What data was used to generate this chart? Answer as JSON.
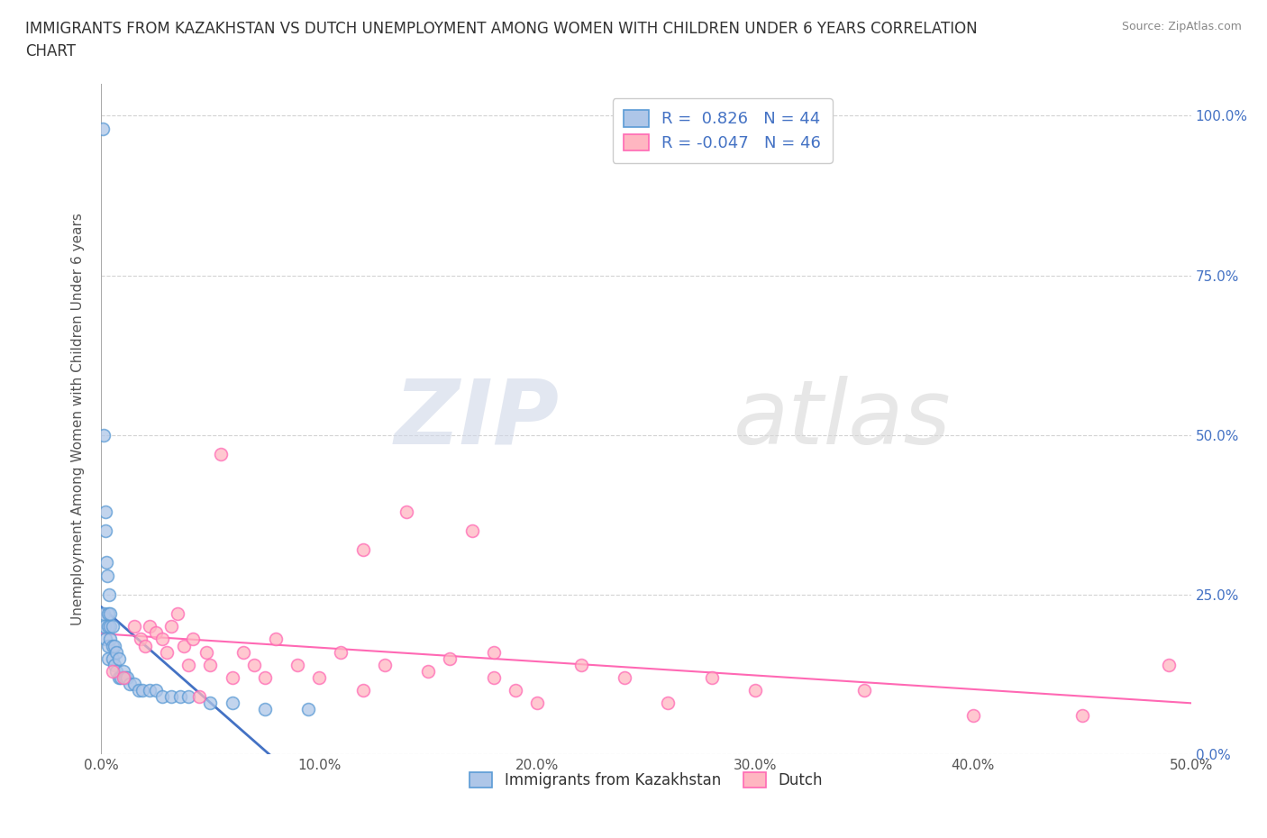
{
  "title_line1": "IMMIGRANTS FROM KAZAKHSTAN VS DUTCH UNEMPLOYMENT AMONG WOMEN WITH CHILDREN UNDER 6 YEARS CORRELATION",
  "title_line2": "CHART",
  "source": "Source: ZipAtlas.com",
  "ylabel": "Unemployment Among Women with Children Under 6 years",
  "xlim": [
    0.0,
    0.5
  ],
  "ylim": [
    0.0,
    1.05
  ],
  "xticks": [
    0.0,
    0.1,
    0.2,
    0.3,
    0.4,
    0.5
  ],
  "xticklabels": [
    "0.0%",
    "10.0%",
    "20.0%",
    "30.0%",
    "40.0%",
    "50.0%"
  ],
  "yticks": [
    0.0,
    0.25,
    0.5,
    0.75,
    1.0
  ],
  "yticklabels_right": [
    "0.0%",
    "25.0%",
    "50.0%",
    "75.0%",
    "100.0%"
  ],
  "legend_r1": "R =  0.826   N = 44",
  "legend_r2": "R = -0.047   N = 46",
  "legend_label1": "Immigrants from Kazakhstan",
  "legend_label2": "Dutch",
  "blue_face": "#AEC6E8",
  "blue_edge": "#5B9BD5",
  "blue_line": "#4472C4",
  "pink_face": "#FFB6C1",
  "pink_edge": "#FF69B4",
  "pink_line": "#FF69B4",
  "right_tick_color": "#4472C4",
  "grid_color": "#d3d3d3",
  "background_color": "#ffffff",
  "watermark": "ZIPatlas",
  "kaz_x": [
    0.0008,
    0.001,
    0.0012,
    0.0015,
    0.0018,
    0.002,
    0.002,
    0.0022,
    0.0025,
    0.003,
    0.003,
    0.003,
    0.003,
    0.0035,
    0.004,
    0.004,
    0.004,
    0.005,
    0.005,
    0.005,
    0.006,
    0.006,
    0.007,
    0.007,
    0.008,
    0.008,
    0.009,
    0.01,
    0.011,
    0.012,
    0.013,
    0.015,
    0.017,
    0.019,
    0.022,
    0.025,
    0.028,
    0.032,
    0.036,
    0.04,
    0.05,
    0.06,
    0.075,
    0.095
  ],
  "kaz_y": [
    0.98,
    0.5,
    0.22,
    0.2,
    0.18,
    0.35,
    0.38,
    0.3,
    0.28,
    0.15,
    0.17,
    0.2,
    0.22,
    0.25,
    0.18,
    0.2,
    0.22,
    0.15,
    0.17,
    0.2,
    0.14,
    0.17,
    0.13,
    0.16,
    0.12,
    0.15,
    0.12,
    0.13,
    0.12,
    0.12,
    0.11,
    0.11,
    0.1,
    0.1,
    0.1,
    0.1,
    0.09,
    0.09,
    0.09,
    0.09,
    0.08,
    0.08,
    0.07,
    0.07
  ],
  "dutch_x": [
    0.005,
    0.01,
    0.015,
    0.018,
    0.02,
    0.022,
    0.025,
    0.028,
    0.03,
    0.032,
    0.035,
    0.038,
    0.04,
    0.042,
    0.045,
    0.048,
    0.05,
    0.055,
    0.06,
    0.065,
    0.07,
    0.075,
    0.08,
    0.09,
    0.1,
    0.11,
    0.12,
    0.13,
    0.14,
    0.15,
    0.16,
    0.17,
    0.18,
    0.19,
    0.2,
    0.22,
    0.24,
    0.26,
    0.28,
    0.3,
    0.35,
    0.4,
    0.45,
    0.49,
    0.12,
    0.18
  ],
  "dutch_y": [
    0.13,
    0.12,
    0.2,
    0.18,
    0.17,
    0.2,
    0.19,
    0.18,
    0.16,
    0.2,
    0.22,
    0.17,
    0.14,
    0.18,
    0.09,
    0.16,
    0.14,
    0.47,
    0.12,
    0.16,
    0.14,
    0.12,
    0.18,
    0.14,
    0.12,
    0.16,
    0.1,
    0.14,
    0.38,
    0.13,
    0.15,
    0.35,
    0.12,
    0.1,
    0.08,
    0.14,
    0.12,
    0.08,
    0.12,
    0.1,
    0.1,
    0.06,
    0.06,
    0.14,
    0.32,
    0.16
  ]
}
